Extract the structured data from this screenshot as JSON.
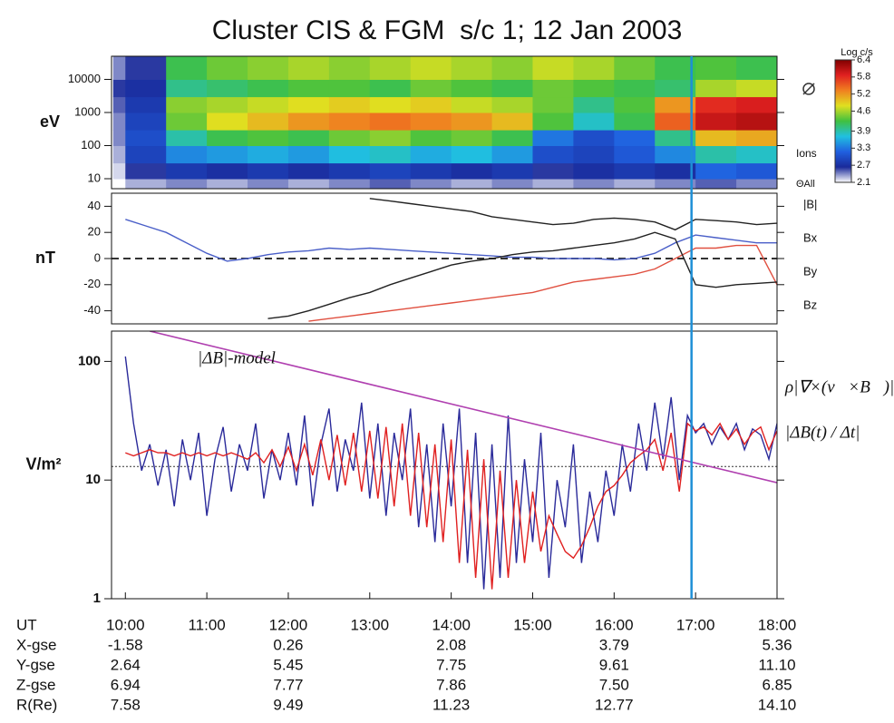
{
  "chart_data": [
    {
      "type": "heatmap",
      "title": "Cluster CIS & FGM  s/c 1; 12 Jan 2003",
      "ylabel": "eV",
      "ylog": true,
      "xlim": [
        9.83,
        18.0
      ],
      "ylim": [
        5,
        50000
      ],
      "yticks": [
        10,
        100,
        1000,
        10000
      ],
      "x_bins": [
        9.85,
        10.0,
        10.5,
        11.0,
        11.5,
        12.0,
        12.5,
        13.0,
        13.5,
        14.0,
        14.5,
        15.0,
        15.5,
        16.0,
        16.5,
        17.0,
        17.5,
        18.0
      ],
      "y_bins": [
        5,
        10,
        30,
        100,
        300,
        1000,
        3000,
        10000,
        50000
      ],
      "z": [
        [
          2.1,
          2.3,
          2.4,
          2.3,
          2.4,
          2.3,
          2.4,
          2.5,
          2.4,
          2.3,
          2.4,
          2.3,
          2.4,
          2.3,
          2.4,
          2.5,
          2.4
        ],
        [
          2.2,
          2.6,
          2.8,
          2.7,
          2.8,
          2.7,
          2.8,
          2.9,
          2.8,
          2.7,
          2.8,
          2.6,
          2.7,
          2.8,
          2.7,
          3.2,
          3.1
        ],
        [
          2.3,
          2.9,
          3.4,
          3.5,
          3.6,
          3.5,
          3.7,
          3.8,
          3.6,
          3.7,
          3.5,
          3.0,
          2.9,
          3.1,
          3.4,
          3.9,
          3.8
        ],
        [
          2.4,
          3.0,
          3.9,
          4.2,
          4.3,
          4.2,
          4.4,
          4.5,
          4.3,
          4.4,
          4.2,
          3.3,
          3.0,
          3.2,
          4.0,
          5.0,
          5.1
        ],
        [
          2.4,
          2.9,
          4.4,
          4.8,
          5.0,
          5.2,
          5.3,
          5.4,
          5.3,
          5.2,
          5.0,
          4.3,
          3.8,
          4.2,
          5.5,
          6.0,
          6.1
        ],
        [
          2.5,
          2.8,
          4.5,
          4.6,
          4.7,
          4.8,
          4.9,
          4.8,
          4.9,
          4.7,
          4.6,
          4.4,
          4.0,
          4.3,
          5.2,
          5.8,
          5.9
        ],
        [
          2.6,
          2.7,
          4.0,
          4.1,
          4.2,
          4.3,
          4.3,
          4.2,
          4.4,
          4.3,
          4.2,
          4.4,
          4.3,
          4.2,
          4.1,
          4.6,
          4.7
        ],
        [
          2.4,
          2.6,
          4.2,
          4.4,
          4.5,
          4.6,
          4.5,
          4.6,
          4.7,
          4.6,
          4.5,
          4.7,
          4.6,
          4.4,
          4.2,
          4.3,
          4.2
        ]
      ],
      "zlim": [
        2.1,
        6.4
      ],
      "colorbar_title": "Log c/s",
      "colorbar_ticks": [
        6.4,
        5.8,
        5.2,
        4.6,
        3.9,
        3.3,
        2.7,
        2.1
      ],
      "colorscale": [
        "#ffffff",
        "#1a2a9a",
        "#2060e0",
        "#20c0e0",
        "#40c040",
        "#e0e020",
        "#f08020",
        "#e02020",
        "#800000"
      ],
      "species_label": "Ions",
      "angle_label": "ΘAll"
    },
    {
      "type": "line",
      "ylabel": "nT",
      "xlim": [
        9.83,
        18.0
      ],
      "ylim": [
        -50,
        50
      ],
      "yticks": [
        40,
        20,
        0,
        -20,
        -40
      ],
      "reference_line": 0,
      "x": [
        10,
        10.25,
        10.5,
        10.75,
        11,
        11.25,
        11.5,
        11.75,
        12,
        12.25,
        12.5,
        12.75,
        13,
        13.25,
        13.5,
        13.75,
        14,
        14.25,
        14.5,
        14.75,
        15,
        15.25,
        15.5,
        15.75,
        16,
        16.25,
        16.5,
        16.75,
        17,
        17.25,
        17.5,
        17.75,
        18
      ],
      "series": [
        {
          "name": "|B|",
          "color": "#222222",
          "values": [
            null,
            null,
            null,
            null,
            null,
            null,
            null,
            null,
            null,
            null,
            null,
            null,
            46,
            44,
            42,
            40,
            38,
            36,
            32,
            30,
            28,
            26,
            27,
            30,
            31,
            30,
            28,
            22,
            30,
            29,
            28,
            26,
            27
          ]
        },
        {
          "name": "Bx",
          "color": "#4a5fc8",
          "values": [
            30,
            25,
            20,
            12,
            4,
            -2,
            0,
            3,
            5,
            6,
            8,
            7,
            8,
            7,
            6,
            5,
            4,
            3,
            2,
            1,
            1,
            0,
            0,
            0,
            -1,
            0,
            4,
            12,
            18,
            16,
            14,
            12,
            12
          ]
        },
        {
          "name": "By",
          "color": "#e05040",
          "values": [
            null,
            null,
            null,
            null,
            null,
            null,
            null,
            null,
            null,
            -48,
            -46,
            -44,
            -42,
            -40,
            -38,
            -36,
            -34,
            -32,
            -30,
            -28,
            -26,
            -22,
            -18,
            -16,
            -14,
            -12,
            -8,
            0,
            8,
            8,
            10,
            10,
            -20
          ]
        },
        {
          "name": "Bz",
          "color": "#222222",
          "values": [
            null,
            null,
            null,
            null,
            null,
            null,
            null,
            -46,
            -44,
            -40,
            -35,
            -30,
            -26,
            -20,
            -15,
            -10,
            -5,
            -2,
            0,
            3,
            5,
            6,
            8,
            10,
            12,
            15,
            20,
            15,
            -20,
            -22,
            -20,
            -19,
            -18
          ]
        }
      ]
    },
    {
      "type": "line",
      "ylabel": "V/m²",
      "ylog": true,
      "xlim": [
        9.83,
        18.0
      ],
      "ylim": [
        1,
        180
      ],
      "yticks": [
        1,
        10,
        100
      ],
      "xlabel": "UT",
      "xticks": [
        {
          "value": 10,
          "label": "10:00"
        },
        {
          "value": 11,
          "label": "11:00"
        },
        {
          "value": 12,
          "label": "12:00"
        },
        {
          "value": 13,
          "label": "13:00"
        },
        {
          "value": 14,
          "label": "14:00"
        },
        {
          "value": 15,
          "label": "15:00"
        },
        {
          "value": 16,
          "label": "16:00"
        },
        {
          "value": 17,
          "label": "17:00"
        },
        {
          "value": 18,
          "label": "18:00"
        }
      ],
      "threshold": 13,
      "model": {
        "label": "|ΔB|-model",
        "color": "#b040b0",
        "x": [
          10.3,
          18.0
        ],
        "values": [
          180,
          9.5
        ]
      },
      "x": [
        10.0,
        10.1,
        10.2,
        10.3,
        10.4,
        10.5,
        10.6,
        10.7,
        10.8,
        10.9,
        11.0,
        11.1,
        11.2,
        11.3,
        11.4,
        11.5,
        11.6,
        11.7,
        11.8,
        11.9,
        12.0,
        12.1,
        12.2,
        12.3,
        12.4,
        12.5,
        12.6,
        12.7,
        12.8,
        12.9,
        13.0,
        13.1,
        13.2,
        13.3,
        13.4,
        13.5,
        13.6,
        13.7,
        13.8,
        13.9,
        14.0,
        14.1,
        14.2,
        14.3,
        14.4,
        14.5,
        14.6,
        14.7,
        14.8,
        14.9,
        15.0,
        15.1,
        15.2,
        15.3,
        15.4,
        15.5,
        15.6,
        15.7,
        15.8,
        15.9,
        16.0,
        16.1,
        16.2,
        16.3,
        16.4,
        16.5,
        16.6,
        16.7,
        16.8,
        16.9,
        17.0,
        17.1,
        17.2,
        17.3,
        17.4,
        17.5,
        17.6,
        17.7,
        17.8,
        17.9,
        18.0
      ],
      "series": [
        {
          "name": "ρ|∇×(v⃗×B⃗)|",
          "color": "#2a2a9a",
          "values": [
            110,
            30,
            12,
            20,
            9,
            18,
            6,
            22,
            10,
            25,
            5,
            15,
            28,
            8,
            20,
            12,
            30,
            7,
            18,
            10,
            25,
            9,
            35,
            6,
            20,
            40,
            8,
            22,
            12,
            45,
            7,
            30,
            5,
            25,
            10,
            40,
            4,
            20,
            3,
            30,
            6,
            40,
            2,
            25,
            1.2,
            20,
            1.5,
            35,
            2,
            15,
            3,
            25,
            1.5,
            10,
            4,
            20,
            2,
            8,
            3,
            12,
            5,
            20,
            8,
            30,
            12,
            45,
            15,
            50,
            10,
            35,
            25,
            30,
            20,
            28,
            22,
            30,
            18,
            27,
            24,
            15,
            30
          ]
        },
        {
          "name": "|ΔB(t) / Δt|",
          "color": "#e02020",
          "values": [
            17,
            16,
            17,
            18,
            17,
            17,
            16,
            17,
            16,
            17,
            16,
            17,
            16,
            17,
            16,
            15,
            17,
            14,
            18,
            13,
            19,
            12,
            20,
            11,
            22,
            10,
            24,
            9,
            25,
            8,
            26,
            7,
            28,
            6,
            30,
            5,
            25,
            4,
            20,
            3,
            22,
            2,
            18,
            1.5,
            15,
            1.2,
            12,
            1.5,
            10,
            2,
            8,
            2.5,
            5,
            3.5,
            2.5,
            2.2,
            2.8,
            4,
            6,
            8,
            9,
            11,
            14,
            16,
            18,
            22,
            12,
            25,
            8,
            30,
            26,
            28,
            24,
            30,
            22,
            27,
            20,
            25,
            28,
            18,
            26
          ]
        }
      ]
    }
  ],
  "time_marker": {
    "x": 16.95,
    "color": "#1e8fd6"
  },
  "ephemeris": {
    "rows": [
      [
        "X-gse",
        "-1.58",
        "0.26",
        "2.08",
        "3.79",
        "5.36"
      ],
      [
        "Y-gse",
        "2.64",
        "5.45",
        "7.75",
        "9.61",
        "11.10"
      ],
      [
        "Z-gse",
        "6.94",
        "7.77",
        "7.86",
        "7.50",
        "6.85"
      ],
      [
        "R(Re)",
        "7.58",
        "9.49",
        "11.23",
        "12.77",
        "14.10"
      ]
    ]
  }
}
